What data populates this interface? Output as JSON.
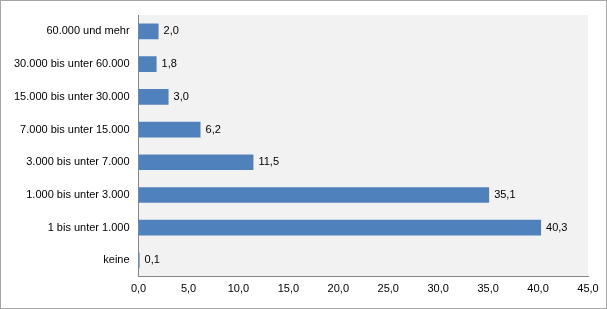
{
  "chart_data": {
    "type": "bar",
    "orientation": "horizontal",
    "categories": [
      "60.000 und mehr",
      "30.000 bis unter 60.000",
      "15.000 bis unter 30.000",
      "7.000 bis unter 15.000",
      "3.000 bis unter 7.000",
      "1.000 bis unter 3.000",
      "1 bis unter 1.000",
      "keine"
    ],
    "values": [
      2.0,
      1.8,
      3.0,
      6.2,
      11.5,
      35.1,
      40.3,
      0.1
    ],
    "value_labels": [
      "2,0",
      "1,8",
      "3,0",
      "6,2",
      "11,5",
      "35,1",
      "40,3",
      "0,1"
    ],
    "color": "#4f81bd",
    "xlim": [
      0,
      45
    ],
    "xticks": [
      {
        "value": 0,
        "label": "0,0"
      },
      {
        "value": 5,
        "label": "5,0"
      },
      {
        "value": 10,
        "label": "10,0"
      },
      {
        "value": 15,
        "label": "15,0"
      },
      {
        "value": 20,
        "label": "20,0"
      },
      {
        "value": 25,
        "label": "25,0"
      },
      {
        "value": 30,
        "label": "30,0"
      },
      {
        "value": 35,
        "label": "35,0"
      },
      {
        "value": 40,
        "label": "40,0"
      },
      {
        "value": 45,
        "label": "45,0"
      }
    ],
    "grid": false,
    "data_labels": true
  }
}
